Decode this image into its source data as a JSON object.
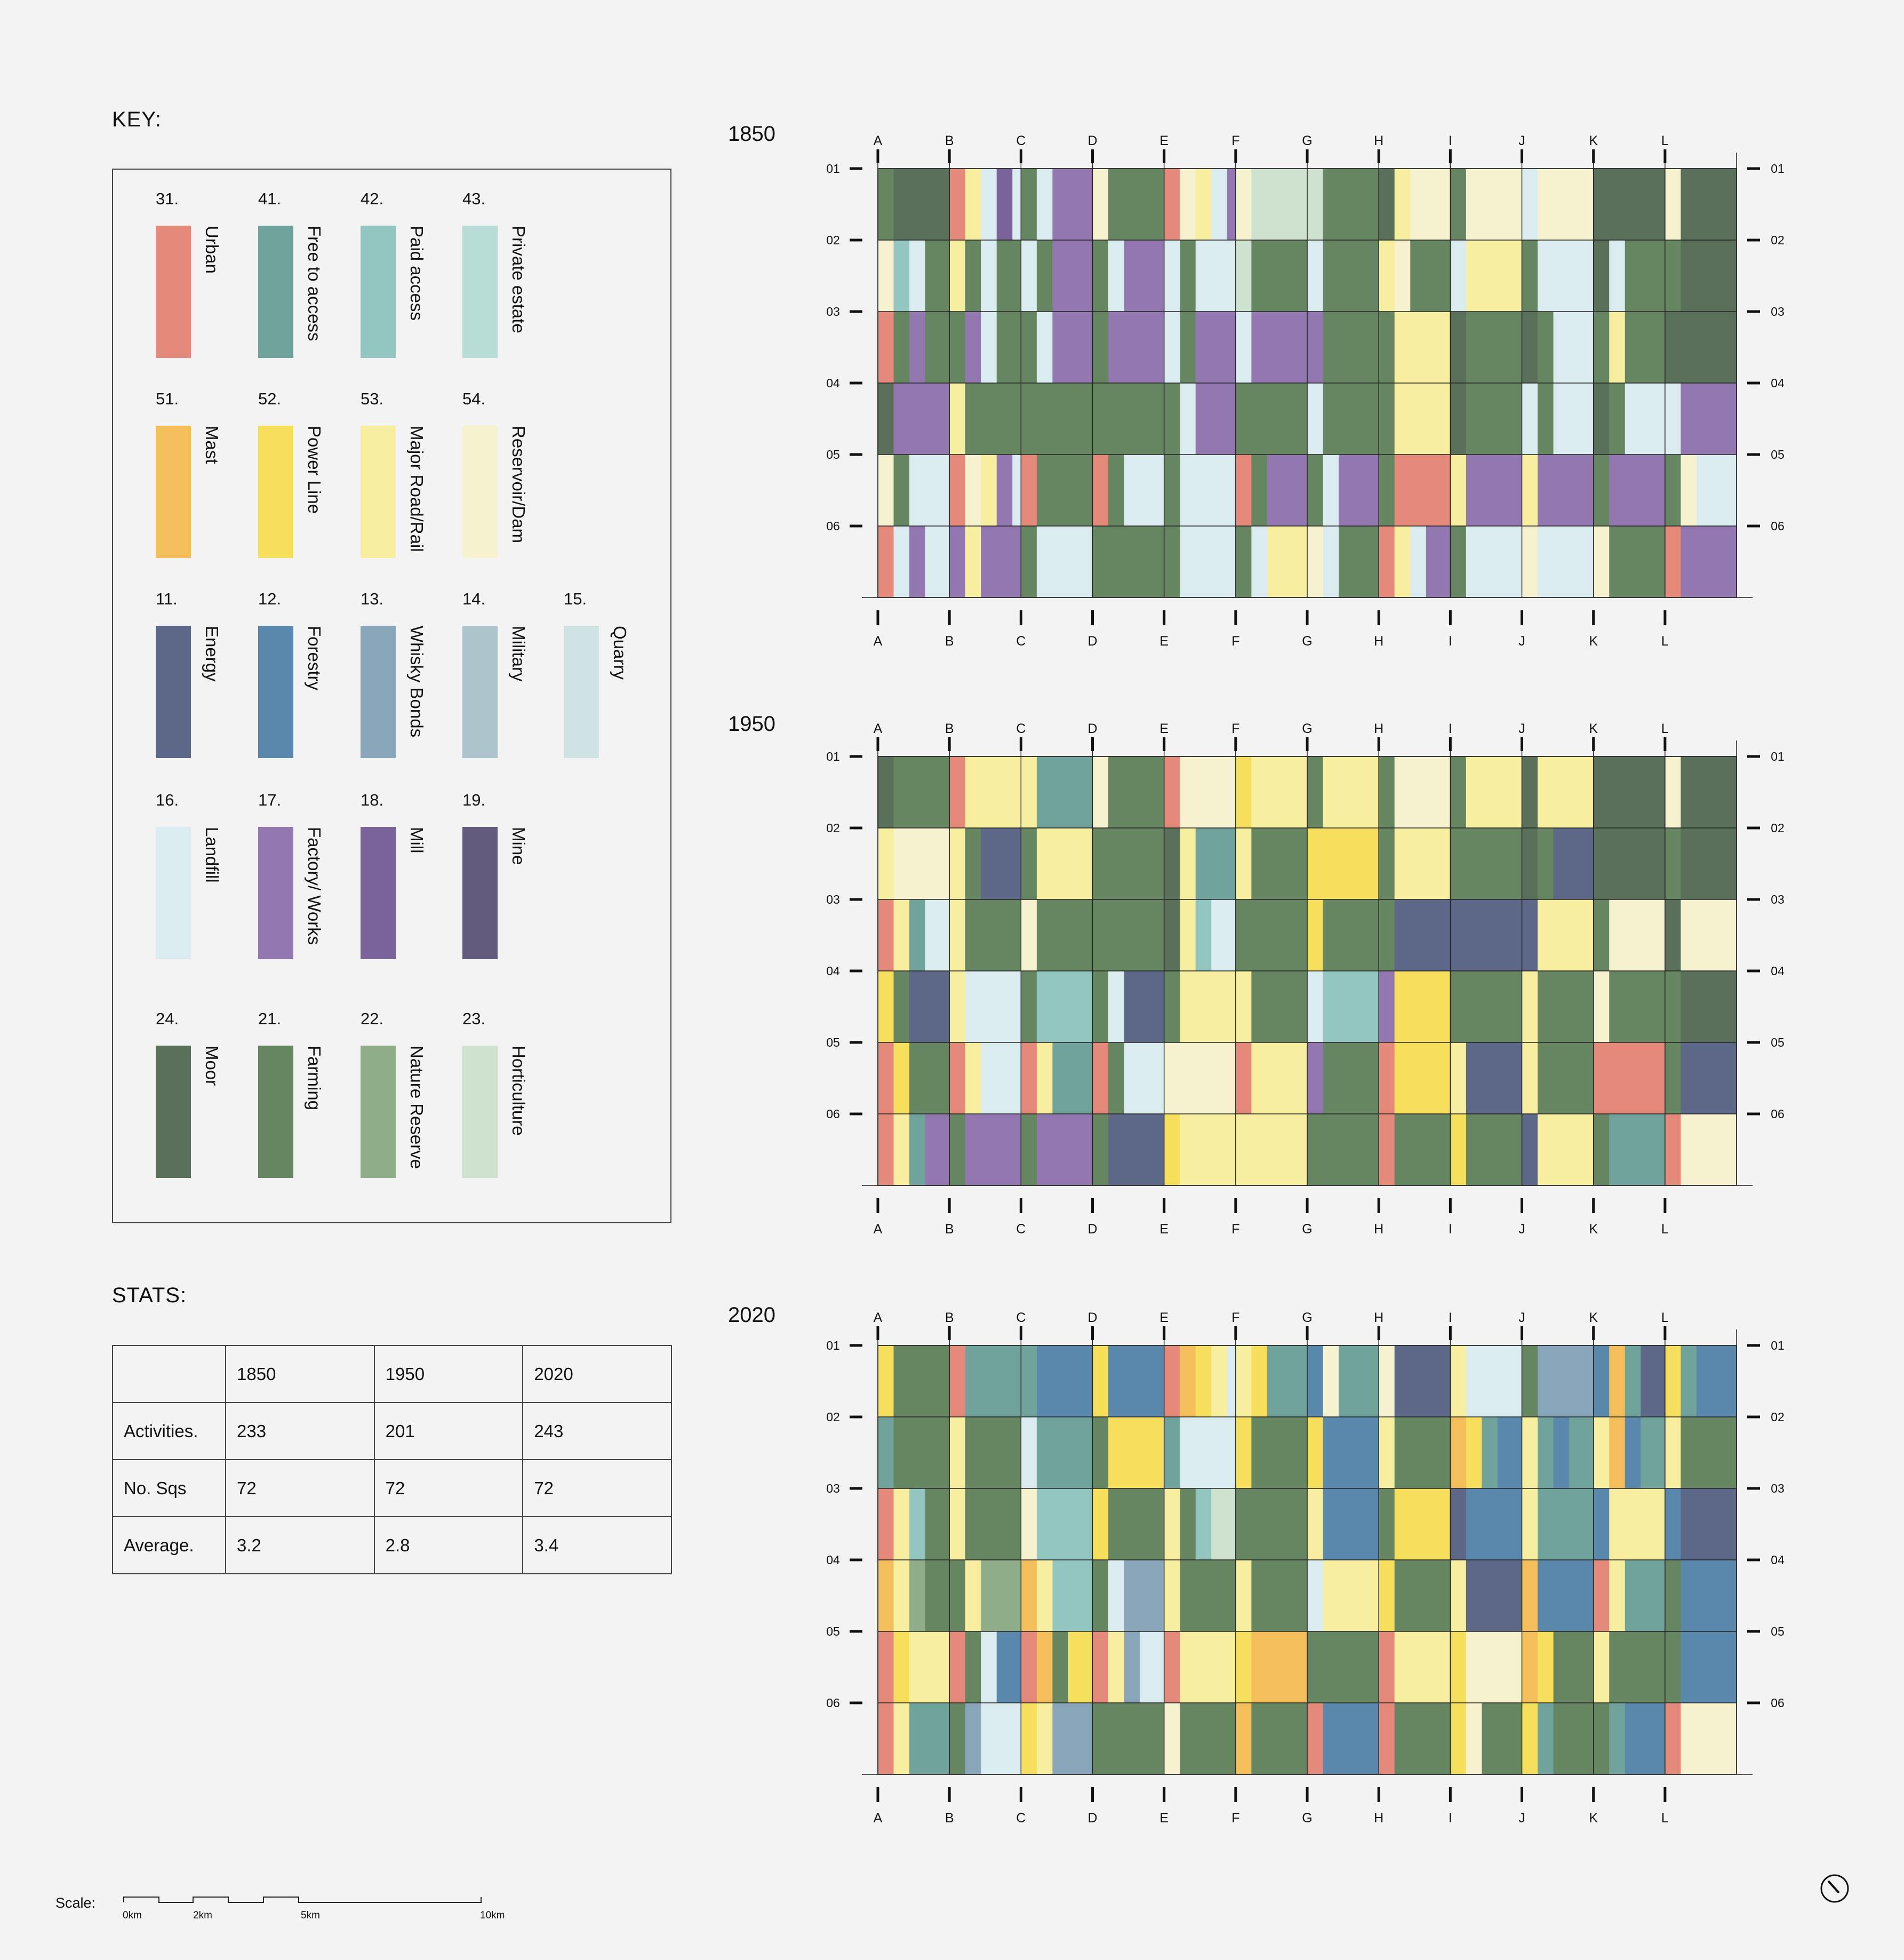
{
  "key_title": "KEY:",
  "stats_title": "STATS:",
  "key": [
    {
      "num": "31.",
      "label": "Urban",
      "color": "#e5897a",
      "col": 0,
      "row": 0
    },
    {
      "num": "41.",
      "label": "Free to access",
      "color": "#6fa39b",
      "col": 1,
      "row": 0
    },
    {
      "num": "42.",
      "label": "Paid access",
      "color": "#93c6c1",
      "col": 2,
      "row": 0
    },
    {
      "num": "43.",
      "label": "Private estate",
      "color": "#b8dcd6",
      "col": 3,
      "row": 0
    },
    {
      "num": "51.",
      "label": "Mast",
      "color": "#f4bf5a",
      "col": 0,
      "row": 1
    },
    {
      "num": "52.",
      "label": "Power Line",
      "color": "#f7df5e",
      "col": 1,
      "row": 1
    },
    {
      "num": "53.",
      "label": "Major Road/Rail",
      "color": "#f7eea0",
      "col": 2,
      "row": 1
    },
    {
      "num": "54.",
      "label": "Reservoir/Dam",
      "color": "#f6f2cf",
      "col": 3,
      "row": 1
    },
    {
      "num": "11.",
      "label": "Energy",
      "color": "#5d6788",
      "col": 0,
      "row": 2
    },
    {
      "num": "12.",
      "label": "Forestry",
      "color": "#5a87ac",
      "col": 1,
      "row": 2
    },
    {
      "num": "13.",
      "label": "Whisky Bonds",
      "color": "#89a5b9",
      "col": 2,
      "row": 2
    },
    {
      "num": "14.",
      "label": "Military",
      "color": "#adc4cc",
      "col": 3,
      "row": 2
    },
    {
      "num": "15.",
      "label": "Quarry",
      "color": "#cfe3e5",
      "col": 4,
      "row": 2
    },
    {
      "num": "16.",
      "label": "Landfill",
      "color": "#daecef",
      "col": 0,
      "row": 3
    },
    {
      "num": "17.",
      "label": "Factory/ Works",
      "color": "#9277b1",
      "col": 1,
      "row": 3
    },
    {
      "num": "18.",
      "label": "Mill",
      "color": "#7a629a",
      "col": 2,
      "row": 3
    },
    {
      "num": "19.",
      "label": "Mine",
      "color": "#625a7d",
      "col": 3,
      "row": 3
    },
    {
      "num": "24.",
      "label": "Moor",
      "color": "#5a705b",
      "col": 0,
      "row": 4
    },
    {
      "num": "21.",
      "label": "Farming",
      "color": "#668661",
      "col": 1,
      "row": 4
    },
    {
      "num": "22.",
      "label": "Nature Reserve",
      "color": "#90ad8a",
      "col": 2,
      "row": 4
    },
    {
      "num": "23.",
      "label": "Horticulture",
      "color": "#cfe2cf",
      "col": 3,
      "row": 4
    }
  ],
  "stats": {
    "header": [
      "",
      "1850",
      "1950",
      "2020"
    ],
    "rows": [
      [
        "Activities.",
        "233",
        "201",
        "243"
      ],
      [
        "No. Sqs",
        "72",
        "72",
        "72"
      ],
      [
        "Average.",
        "3.2",
        "2.8",
        "3.4"
      ]
    ]
  },
  "scale": {
    "label": "Scale:",
    "ticks": [
      "0km",
      "2km",
      "5km",
      "10km"
    ]
  },
  "chart_data": [
    {
      "type": "heatmap",
      "title": "1850",
      "columns": [
        "A",
        "B",
        "C",
        "D",
        "E",
        "F",
        "G",
        "H",
        "I",
        "J",
        "K",
        "L"
      ],
      "rows": [
        "01",
        "02",
        "03",
        "04",
        "05",
        "06"
      ],
      "activities": 233,
      "cells": [
        [
          "21 24",
          "31 53 16 18 16 17",
          "21 16 17",
          "54 21",
          "31 54 53 16 17 23 21",
          "54 23",
          "23 21",
          "24 53 54",
          "21 54",
          "16 54",
          "24",
          "54 24"
        ],
        [
          "54 42 16 21",
          "53 21 16 21",
          "16 21 17",
          "21 16 17",
          "16 21 16 16",
          "23 21",
          "16 21",
          "53 54 21",
          "16 53",
          "21 16",
          "24 16 21",
          "21 24"
        ],
        [
          "31 21 17 21",
          "21 17 16 21",
          "21 16 17",
          "21 17",
          "16 21 17",
          "16 17",
          "17 21",
          "21 53",
          "24 21",
          "24 21 16",
          "21 53 21",
          "24"
        ],
        [
          "24 17",
          "53 21",
          "21",
          "21",
          "21 16 17",
          "21",
          "16 21",
          "21 53",
          "24 21",
          "16 21 16",
          "24 21 16",
          "16 17"
        ],
        [
          "54 21 16",
          "31 54 53 17 16",
          "31 21",
          "31 21 16",
          "21 16",
          "31 21 17",
          "21 16 17",
          "21 31",
          "53 17",
          "53 17",
          "21 17",
          "21 54 16"
        ],
        [
          "31 16 17 16",
          "17 53 17",
          "21 16",
          "21",
          "21 16",
          "21 16 53",
          "54 16 21",
          "31 53 16 17",
          "21 16",
          "54 16",
          "54 21",
          "31 17"
        ]
      ]
    },
    {
      "type": "heatmap",
      "title": "1950",
      "columns": [
        "A",
        "B",
        "C",
        "D",
        "E",
        "F",
        "G",
        "H",
        "I",
        "J",
        "K",
        "L"
      ],
      "rows": [
        "01",
        "02",
        "03",
        "04",
        "05",
        "06"
      ],
      "activities": 201,
      "cells": [
        [
          "24 21",
          "31 53",
          "53 41",
          "54 21",
          "31 54",
          "52 53",
          "21 53",
          "21 54",
          "21 53",
          "24 53",
          "24",
          "54 24"
        ],
        [
          "53 54",
          "53 21 11",
          "21 53",
          "21",
          "24 53 41",
          "53 21",
          "52",
          "21 53",
          "21",
          "24 21 11",
          "24",
          "21 24"
        ],
        [
          "31 53 41 16",
          "53 21",
          "54 21",
          "21",
          "24 53 42 16",
          "21",
          "52 21",
          "21 11",
          "11",
          "11 53",
          "21 54",
          "24 54"
        ],
        [
          "52 21 11",
          "53 16",
          "21 42",
          "21 16 11",
          "21 53",
          "53 21",
          "16 42",
          "17 52",
          "21",
          "53 21",
          "54 21",
          "21 24"
        ],
        [
          "31 52 21",
          "31 53 16",
          "31 53 41",
          "31 21 16",
          "54",
          "31 53",
          "17 21",
          "31 52",
          "53 11",
          "53 21",
          "31",
          "21 11"
        ],
        [
          "31 53 41 17",
          "21 17",
          "21 17",
          "21 11",
          "52 53",
          "53",
          "21",
          "31 21",
          "52 21",
          "11 53",
          "21 41",
          "31 54"
        ]
      ]
    },
    {
      "type": "heatmap",
      "title": "2020",
      "columns": [
        "A",
        "B",
        "C",
        "D",
        "E",
        "F",
        "G",
        "H",
        "I",
        "J",
        "K",
        "L"
      ],
      "rows": [
        "01",
        "02",
        "03",
        "04",
        "05",
        "06"
      ],
      "activities": 243,
      "cells": [
        [
          "52 21",
          "31 41",
          "41 12",
          "52 12",
          "31 51 52 53 16 12",
          "53 52 41",
          "12 54 41",
          "54 11",
          "53 16",
          "21 13",
          "12 51 41 11",
          "52 41 12"
        ],
        [
          "41 21",
          "53 21",
          "16 41",
          "21 52",
          "41 16",
          "52 21",
          "52 12",
          "53 21",
          "51 52 41 12",
          "53 41 12 41",
          "53 51 12 41",
          "53 21"
        ],
        [
          "31 53 42 21",
          "53 21",
          "54 42",
          "52 21",
          "53 21 42 23",
          "21",
          "53 12",
          "21 52",
          "11 12",
          "53 41",
          "12 53",
          "12 11"
        ],
        [
          "51 53 22 21",
          "21 53 22",
          "51 53 42",
          "21 16 13",
          "53 21",
          "53 21",
          "16 53",
          "52 21",
          "53 11",
          "51 12",
          "31 53 41",
          "21 12"
        ],
        [
          "31 52 53",
          "31 21 16 12",
          "31 51 21 52",
          "31 53 13 16",
          "31 53",
          "52 51",
          "21",
          "31 53",
          "52 54",
          "51 52 21",
          "53 21",
          "21 12"
        ],
        [
          "31 53 41",
          "21 13 16",
          "52 53 13",
          "21",
          "54 21",
          "51 21",
          "31 12",
          "31 21",
          "52 54 21",
          "52 41 21",
          "21 41 12",
          "31 54"
        ]
      ]
    }
  ]
}
